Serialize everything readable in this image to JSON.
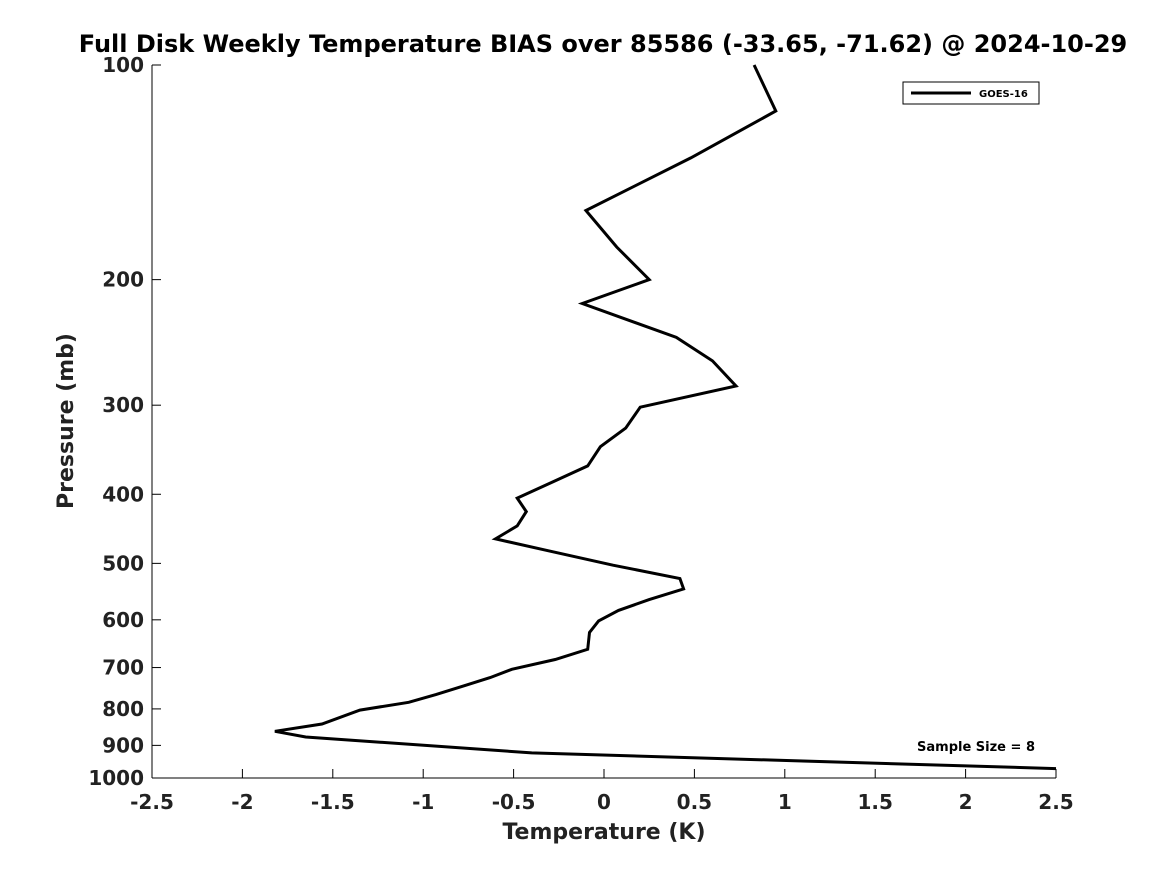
{
  "chart_data": {
    "type": "line",
    "title": "Full Disk Weekly Temperature BIAS over 85586 (-33.65, -71.62) @ 2024-10-29",
    "xlabel": "Temperature (K)",
    "ylabel": "Pressure (mb)",
    "xlim": [
      -2.5,
      2.5
    ],
    "ylim": [
      100,
      1000
    ],
    "y_scale": "log",
    "y_reversed": true,
    "grid": false,
    "legend_position": "top-right",
    "x_ticks": [
      {
        "value": -2.5,
        "label": "-2.5"
      },
      {
        "value": -2,
        "label": "-2"
      },
      {
        "value": -1.5,
        "label": "-1.5"
      },
      {
        "value": -1,
        "label": "-1"
      },
      {
        "value": -0.5,
        "label": "-0.5"
      },
      {
        "value": 0,
        "label": "0"
      },
      {
        "value": 0.5,
        "label": "0.5"
      },
      {
        "value": 1,
        "label": "1"
      },
      {
        "value": 1.5,
        "label": "1.5"
      },
      {
        "value": 2,
        "label": "2"
      },
      {
        "value": 2.5,
        "label": "2.5"
      }
    ],
    "y_ticks": [
      {
        "value": 100,
        "label": "100"
      },
      {
        "value": 200,
        "label": "200"
      },
      {
        "value": 300,
        "label": "300"
      },
      {
        "value": 400,
        "label": "400"
      },
      {
        "value": 500,
        "label": "500"
      },
      {
        "value": 600,
        "label": "600"
      },
      {
        "value": 700,
        "label": "700"
      },
      {
        "value": 800,
        "label": "800"
      },
      {
        "value": 900,
        "label": "900"
      },
      {
        "value": 1000,
        "label": "1000"
      }
    ],
    "series": [
      {
        "name": "GOES-16",
        "color": "#000000",
        "points": [
          {
            "x": 0.83,
            "y": 100
          },
          {
            "x": 0.95,
            "y": 116
          },
          {
            "x": 0.48,
            "y": 135
          },
          {
            "x": -0.1,
            "y": 160
          },
          {
            "x": 0.07,
            "y": 180
          },
          {
            "x": 0.25,
            "y": 200
          },
          {
            "x": -0.12,
            "y": 216
          },
          {
            "x": 0.4,
            "y": 241
          },
          {
            "x": 0.6,
            "y": 260
          },
          {
            "x": 0.73,
            "y": 282
          },
          {
            "x": 0.2,
            "y": 302
          },
          {
            "x": 0.12,
            "y": 323
          },
          {
            "x": -0.02,
            "y": 343
          },
          {
            "x": -0.09,
            "y": 365
          },
          {
            "x": -0.28,
            "y": 384
          },
          {
            "x": -0.48,
            "y": 405
          },
          {
            "x": -0.43,
            "y": 423
          },
          {
            "x": -0.48,
            "y": 443
          },
          {
            "x": -0.6,
            "y": 462
          },
          {
            "x": -0.31,
            "y": 480
          },
          {
            "x": 0.05,
            "y": 503
          },
          {
            "x": 0.42,
            "y": 525
          },
          {
            "x": 0.44,
            "y": 543
          },
          {
            "x": 0.25,
            "y": 562
          },
          {
            "x": 0.08,
            "y": 582
          },
          {
            "x": -0.03,
            "y": 602
          },
          {
            "x": -0.08,
            "y": 625
          },
          {
            "x": -0.09,
            "y": 660
          },
          {
            "x": -0.27,
            "y": 682
          },
          {
            "x": -0.51,
            "y": 704
          },
          {
            "x": -0.63,
            "y": 723
          },
          {
            "x": -0.77,
            "y": 742
          },
          {
            "x": -0.93,
            "y": 764
          },
          {
            "x": -1.08,
            "y": 783
          },
          {
            "x": -1.35,
            "y": 803
          },
          {
            "x": -1.56,
            "y": 840
          },
          {
            "x": -1.82,
            "y": 860
          },
          {
            "x": -1.65,
            "y": 876
          },
          {
            "x": -0.4,
            "y": 922
          },
          {
            "x": 2.5,
            "y": 970
          }
        ]
      }
    ],
    "annotations": [
      {
        "text": "Sample Size = 8",
        "position": "bottom-right"
      }
    ]
  }
}
